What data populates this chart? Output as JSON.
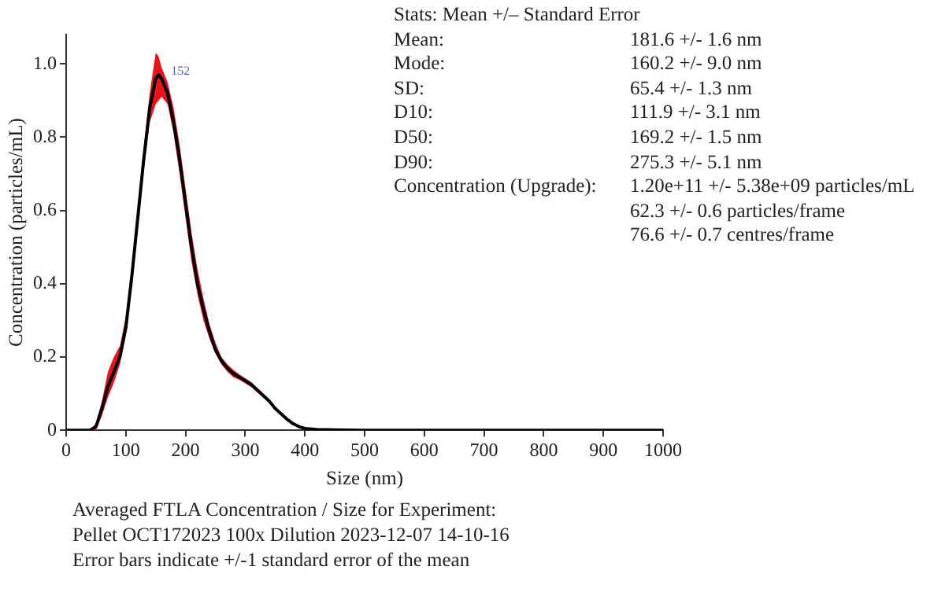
{
  "chart_data": {
    "type": "line",
    "xlabel": "Size (nm)",
    "ylabel": "Concentration (particles/mL)",
    "xlim": [
      0,
      1000
    ],
    "xticks": [
      0,
      100,
      200,
      300,
      400,
      500,
      600,
      700,
      800,
      900,
      1000
    ],
    "ylim": [
      0,
      1.08
    ],
    "yticks": [
      0,
      0.2,
      0.4,
      0.6,
      0.8,
      {
        "value": 1,
        "label": "1.0"
      }
    ],
    "grid": false,
    "legend": false,
    "marker": "none",
    "line_style": "solid",
    "series": [
      {
        "color": "#000000",
        "x": [
          0,
          40,
          50,
          60,
          70,
          80,
          90,
          100,
          110,
          120,
          130,
          140,
          150,
          155,
          160,
          170,
          180,
          190,
          200,
          210,
          220,
          230,
          240,
          250,
          260,
          270,
          280,
          290,
          300,
          310,
          320,
          330,
          340,
          350,
          360,
          370,
          380,
          390,
          400,
          420,
          450,
          500,
          1000
        ],
        "values": [
          0,
          0,
          0.01,
          0.06,
          0.12,
          0.16,
          0.2,
          0.28,
          0.42,
          0.58,
          0.74,
          0.88,
          0.96,
          0.97,
          0.96,
          0.92,
          0.84,
          0.74,
          0.62,
          0.5,
          0.4,
          0.33,
          0.27,
          0.22,
          0.19,
          0.17,
          0.155,
          0.145,
          0.135,
          0.125,
          0.11,
          0.095,
          0.08,
          0.06,
          0.045,
          0.03,
          0.018,
          0.01,
          0.005,
          0.002,
          0.001,
          0,
          0
        ],
        "lower": [
          0,
          0,
          0,
          0.04,
          0.09,
          0.13,
          0.18,
          0.26,
          0.4,
          0.55,
          0.71,
          0.84,
          0.89,
          0.9,
          0.91,
          0.89,
          0.81,
          0.7,
          0.58,
          0.46,
          0.37,
          0.3,
          0.25,
          0.21,
          0.18,
          0.16,
          0.145,
          0.138,
          0.128,
          0.118,
          0.104,
          0.09,
          0.075,
          0.056,
          0.042,
          0.028,
          0.016,
          0.008,
          0.004,
          0.001,
          0,
          0,
          0
        ],
        "upper": [
          0,
          0,
          0.02,
          0.08,
          0.16,
          0.2,
          0.23,
          0.31,
          0.45,
          0.61,
          0.77,
          0.92,
          1.03,
          1.02,
          0.99,
          0.95,
          0.88,
          0.78,
          0.66,
          0.54,
          0.44,
          0.36,
          0.29,
          0.24,
          0.2,
          0.18,
          0.165,
          0.153,
          0.142,
          0.132,
          0.116,
          0.1,
          0.085,
          0.064,
          0.048,
          0.032,
          0.02,
          0.012,
          0.006,
          0.003,
          0.002,
          0,
          0
        ]
      }
    ],
    "annotations": [
      {
        "text": "152",
        "x": 152,
        "y": 0.98
      },
      "Stats: Mean +/– Standard Error",
      "Mean:\t181.6 +/- 1.6 nm",
      "Mode:\t160.2 +/- 9.0 nm",
      "SD:\t65.4 +/- 1.3 nm",
      "D10:\t111.9 +/- 3.1 nm",
      "D50:\t169.2 +/- 1.5 nm",
      "D90:\t275.3 +/- 5.1 nm",
      "Concentration (Upgrade):\t1.20e+11 +/- 5.38e+09 particles/mL",
      "\t62.3 +/- 0.6 particles/frame",
      "\t76.6 +/- 0.7 centres/frame",
      "Averaged FTLA Concentration / Size for Experiment:",
      "Pellet OCT172023 100x Dilution 2023-12-07 14-10-16",
      "Error bars indicate +/-1 standard error of the mean"
    ]
  }
}
